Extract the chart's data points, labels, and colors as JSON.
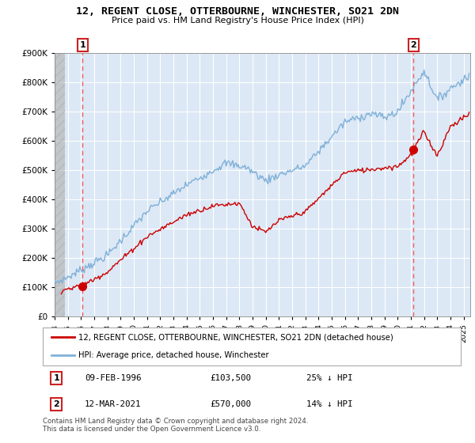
{
  "title": "12, REGENT CLOSE, OTTERBOURNE, WINCHESTER, SO21 2DN",
  "subtitle": "Price paid vs. HM Land Registry's House Price Index (HPI)",
  "ylim": [
    0,
    900000
  ],
  "yticks": [
    0,
    100000,
    200000,
    300000,
    400000,
    500000,
    600000,
    700000,
    800000,
    900000
  ],
  "ytick_labels": [
    "£0",
    "£100K",
    "£200K",
    "£300K",
    "£400K",
    "£500K",
    "£600K",
    "£700K",
    "£800K",
    "£900K"
  ],
  "xlim_start": 1994.0,
  "xlim_end": 2025.5,
  "hpi_color": "#7fb0d8",
  "price_color": "#cc0000",
  "marker1_date": 1996.11,
  "marker1_price": 103500,
  "marker2_date": 2021.19,
  "marker2_price": 570000,
  "legend_label1": "12, REGENT CLOSE, OTTERBOURNE, WINCHESTER, SO21 2DN (detached house)",
  "legend_label2": "HPI: Average price, detached house, Winchester",
  "footnote": "Contains HM Land Registry data © Crown copyright and database right 2024.\nThis data is licensed under the Open Government Licence v3.0.",
  "plot_bg_color": "#dce8f5",
  "grid_color": "#ffffff",
  "hatch_color": "#c8c8c8"
}
